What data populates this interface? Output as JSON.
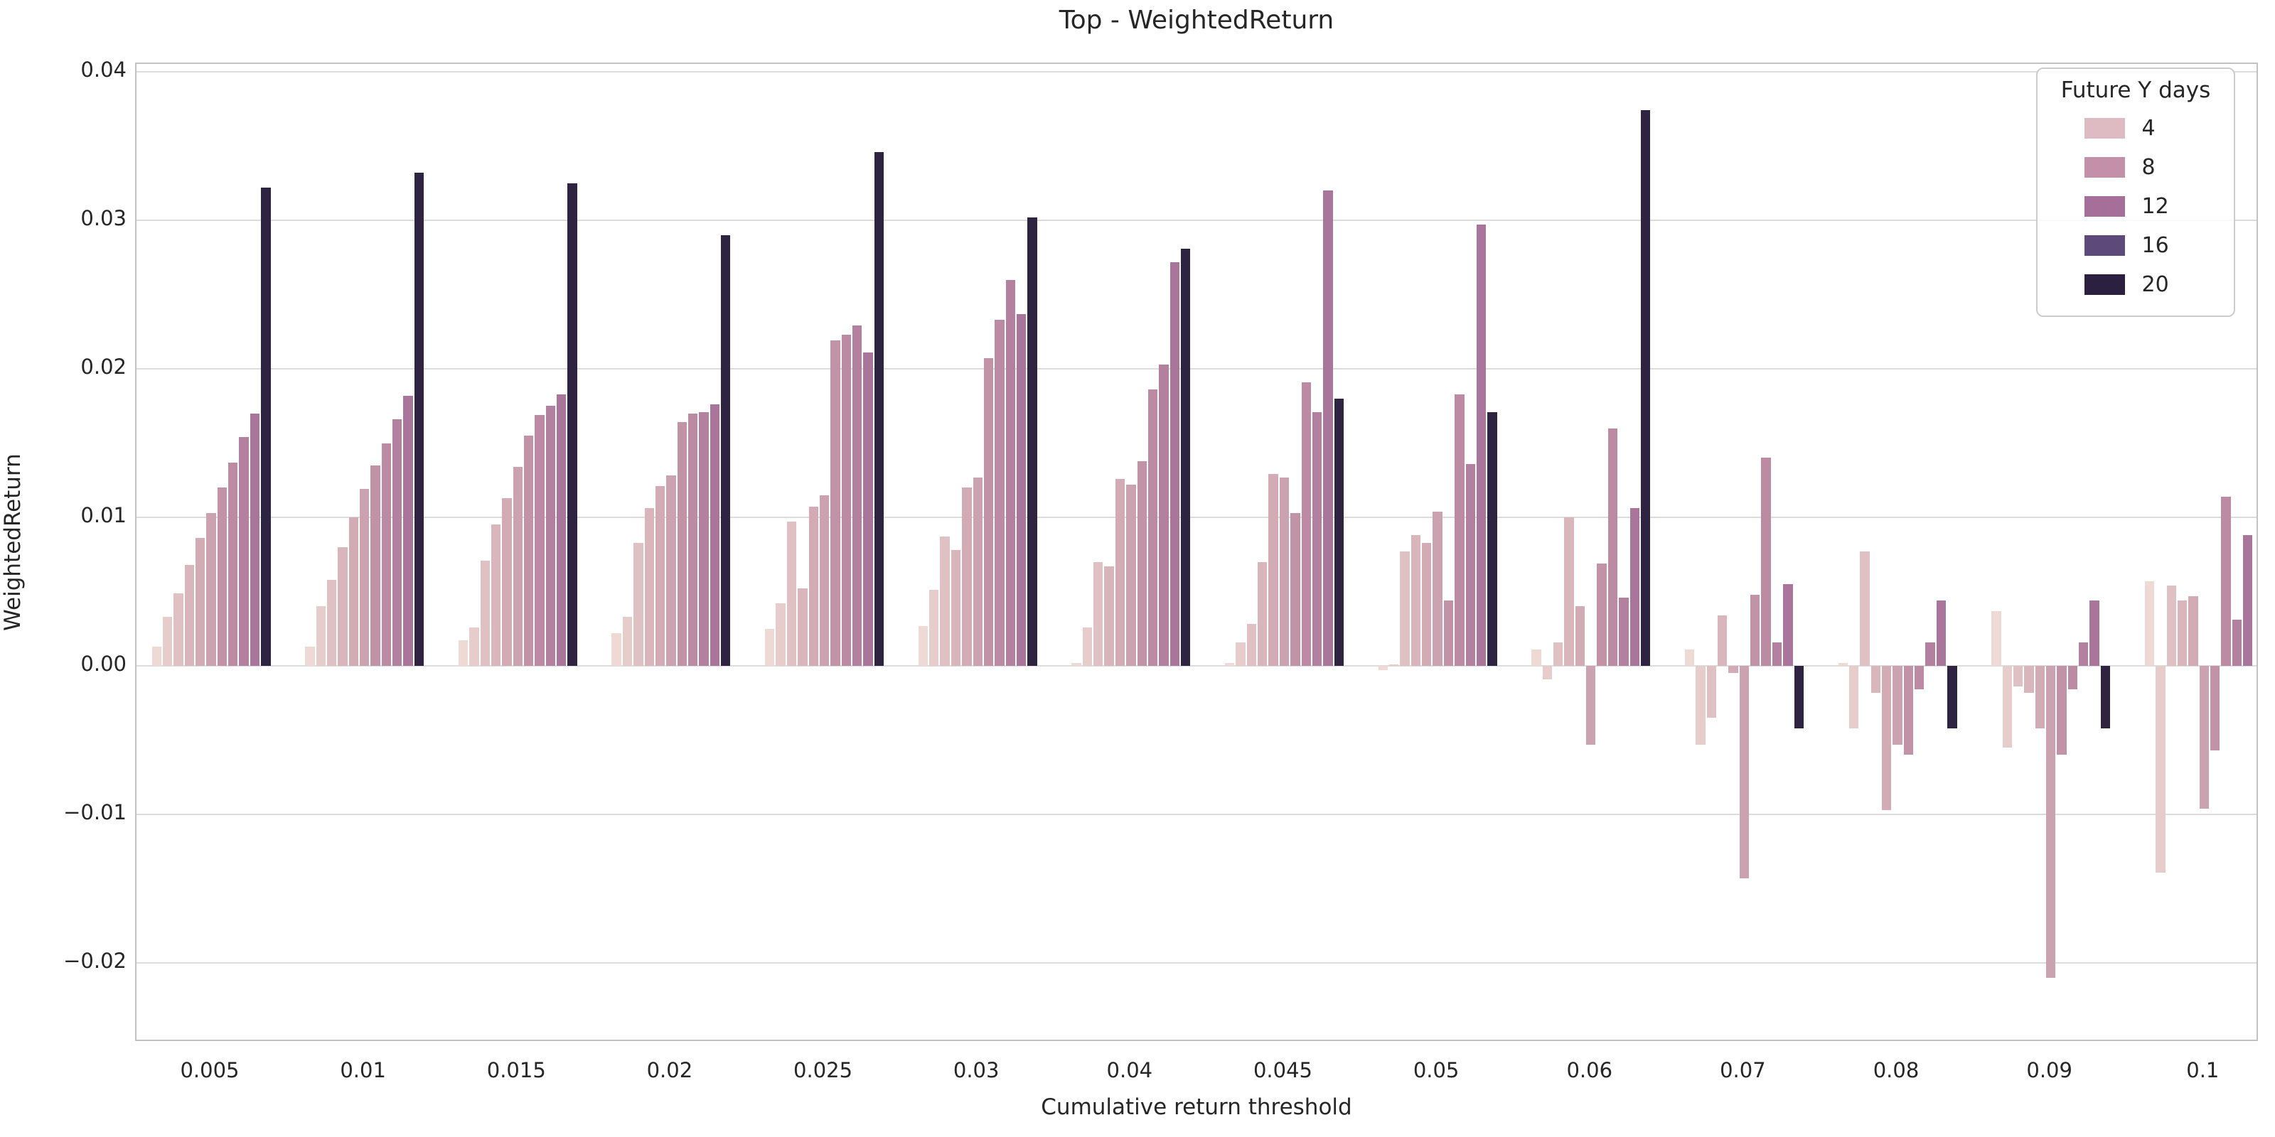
{
  "title": "Top - WeightedReturn",
  "chart_data": {
    "type": "bar",
    "title": "Top - WeightedReturn",
    "xlabel": "Cumulative return threshold",
    "ylabel": "WeightedReturn",
    "categories": [
      "0.005",
      "0.01",
      "0.015",
      "0.02",
      "0.025",
      "0.03",
      "0.04",
      "0.045",
      "0.05",
      "0.06",
      "0.07",
      "0.08",
      "0.09",
      "0.1"
    ],
    "y_ticks": [
      "0.04",
      "0.03",
      "0.02",
      "0.01",
      "0.00",
      "−0.01",
      "−0.02"
    ],
    "y_tick_values": [
      0.04,
      0.03,
      0.02,
      0.01,
      0.0,
      -0.01,
      -0.02
    ],
    "ylim": [
      -0.0254,
      0.0405
    ],
    "grid": true,
    "legend": {
      "title": "Future Y days",
      "position": "upper right",
      "entries": [
        {
          "label": "4",
          "color": "#debac3"
        },
        {
          "label": "8",
          "color": "#c48fa9"
        },
        {
          "label": "12",
          "color": "#a56f99"
        },
        {
          "label": "16",
          "color": "#5d4a7a"
        },
        {
          "label": "20",
          "color": "#2c2040"
        }
      ]
    },
    "series": [
      {
        "name": "bar-1",
        "color": "#eed9d4",
        "values": [
          0.0013,
          0.0013,
          0.0017,
          0.0022,
          0.0025,
          0.0027,
          0.0002,
          0.0002,
          -0.0003,
          0.0011,
          0.0011,
          0.0002,
          0.0037,
          0.0057
        ]
      },
      {
        "name": "bar-2",
        "color": "#e6cccb",
        "values": [
          0.0033,
          0.004,
          0.0026,
          0.0033,
          0.0042,
          0.0051,
          0.0026,
          0.0016,
          0.0001,
          -0.0009,
          -0.0053,
          -0.0042,
          -0.0055,
          -0.0139
        ]
      },
      {
        "name": "bar-3",
        "color": "#dfc1c4",
        "values": [
          0.0049,
          0.0058,
          0.0071,
          0.0083,
          0.0097,
          0.0087,
          0.007,
          0.0028,
          0.0077,
          0.0016,
          -0.0035,
          0.0077,
          -0.0014,
          0.0054
        ]
      },
      {
        "name": "bar-4",
        "color": "#d9b5bc",
        "values": [
          0.0068,
          0.008,
          0.0095,
          0.0106,
          0.0052,
          0.0078,
          0.0067,
          0.007,
          0.0088,
          0.01,
          0.0034,
          -0.0018,
          -0.0018,
          0.0044
        ]
      },
      {
        "name": "bar-5",
        "color": "#d3abb5",
        "values": [
          0.0086,
          0.01,
          0.0113,
          0.0121,
          0.0107,
          0.012,
          0.0126,
          0.0129,
          0.0083,
          0.004,
          -0.0005,
          -0.0097,
          -0.0042,
          0.0047
        ]
      },
      {
        "name": "bar-6",
        "color": "#cba2b0",
        "values": [
          0.0103,
          0.0119,
          0.0134,
          0.0128,
          0.0115,
          0.0127,
          0.0122,
          0.0127,
          0.0104,
          -0.0053,
          -0.0143,
          -0.0053,
          -0.021,
          -0.0096
        ]
      },
      {
        "name": "bar-7",
        "color": "#c293a7",
        "values": [
          0.012,
          0.0135,
          0.0155,
          0.0164,
          0.0219,
          0.0207,
          0.0138,
          0.0103,
          0.0044,
          0.0069,
          0.0048,
          -0.006,
          -0.006,
          -0.0057
        ]
      },
      {
        "name": "bar-8",
        "color": "#bc8aa3",
        "values": [
          0.0137,
          0.015,
          0.0169,
          0.017,
          0.0223,
          0.0233,
          0.0186,
          0.0191,
          0.0183,
          0.016,
          0.014,
          -0.0016,
          -0.0016,
          0.0114
        ]
      },
      {
        "name": "bar-9",
        "color": "#b3819f",
        "values": [
          0.0154,
          0.0166,
          0.0175,
          0.0171,
          0.0229,
          0.026,
          0.0203,
          0.0171,
          0.0136,
          0.0046,
          0.0016,
          0.0016,
          0.0016,
          0.0031
        ]
      },
      {
        "name": "bar-10",
        "color": "#a9759b",
        "values": [
          0.017,
          0.0182,
          0.0183,
          0.0176,
          0.0211,
          0.0237,
          0.0272,
          0.032,
          0.0297,
          0.0106,
          0.0055,
          0.0044,
          0.0044,
          0.0088
        ]
      },
      {
        "name": "bar-20",
        "color": "#2e2340",
        "values": [
          0.0322,
          0.0332,
          0.0325,
          0.029,
          0.0346,
          0.0302,
          0.0281,
          0.018,
          0.0171,
          0.0374,
          -0.0042,
          -0.0042,
          -0.0042,
          0.0
        ]
      }
    ]
  },
  "colors": {
    "background": "#ffffff",
    "gridline": "#dcdcdc",
    "spine": "#c2c2c2",
    "text": "#262626"
  }
}
